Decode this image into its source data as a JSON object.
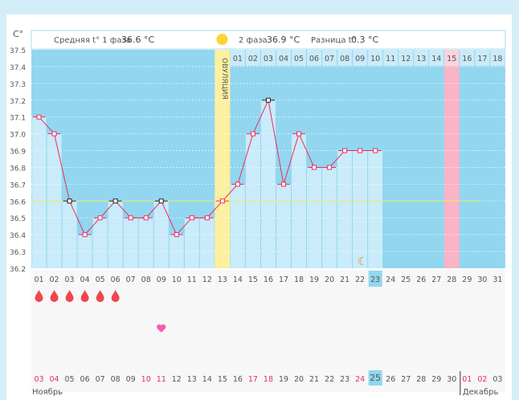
{
  "header": {
    "phase1_label": "Средняя t° 1 фаза",
    "phase1_value": "36.6 °C",
    "phase2_label": "2 фаза",
    "phase2_value": "36.9 °C",
    "diff_label": "Разница t°",
    "diff_value": "0.3 °C",
    "ovulation_label": "ОВУЛЯЦИЯ"
  },
  "chart_data": {
    "type": "line",
    "ylabel": "C°",
    "ylim": [
      36.2,
      37.5
    ],
    "yticks": [
      "37.5",
      "37.4",
      "37.3",
      "37.2",
      "37.1",
      "37.0",
      "36.9",
      "36.8",
      "36.7",
      "36.6",
      "36.5",
      "36.4",
      "36.3",
      "36.2"
    ],
    "x": [
      1,
      2,
      3,
      4,
      5,
      6,
      7,
      8,
      9,
      10,
      11,
      12,
      13,
      14,
      15,
      16,
      17,
      18,
      19,
      20,
      21,
      22,
      23
    ],
    "values": [
      37.1,
      37.0,
      36.6,
      36.4,
      36.5,
      36.6,
      36.5,
      36.5,
      36.6,
      36.4,
      36.5,
      36.5,
      36.6,
      36.7,
      37.0,
      37.2,
      36.7,
      37.0,
      36.8,
      36.8,
      36.9,
      36.9,
      36.9
    ],
    "coverline": 36.6,
    "ovulation_day": 13,
    "current_day": 23,
    "expected_period_day": 28,
    "phase2_days": [
      "01",
      "02",
      "03",
      "04",
      "05",
      "06",
      "07",
      "08",
      "09",
      "10",
      "11",
      "12",
      "13",
      "14",
      "15",
      "16",
      "17",
      "18"
    ],
    "cycle_days": [
      "01",
      "02",
      "03",
      "04",
      "05",
      "06",
      "07",
      "08",
      "09",
      "10",
      "11",
      "12",
      "13",
      "14",
      "15",
      "16",
      "17",
      "18",
      "19",
      "20",
      "21",
      "22",
      "23",
      "24",
      "25",
      "26",
      "27",
      "28",
      "29",
      "30",
      "31"
    ],
    "period_days": [
      1,
      2,
      3,
      4,
      5,
      6
    ],
    "heart_day": 9,
    "dates": [
      "03",
      "04",
      "05",
      "06",
      "07",
      "08",
      "09",
      "10",
      "11",
      "12",
      "13",
      "14",
      "15",
      "16",
      "17",
      "18",
      "19",
      "20",
      "21",
      "22",
      "23",
      "24",
      "25",
      "26",
      "27",
      "28",
      "29",
      "30",
      "01",
      "02",
      "03"
    ],
    "red_dates": [
      1,
      2,
      8,
      9,
      15,
      16,
      22,
      29,
      30
    ],
    "months": [
      "Ноябрь",
      "Декабрь"
    ]
  },
  "colors": {
    "bg": "#92d6f0",
    "bar": "#c9ebfa",
    "ovulation": "#fdf0a0",
    "pink": "#f9b4c8",
    "line": "#ee2d5c",
    "cover": "#f3e36a"
  }
}
